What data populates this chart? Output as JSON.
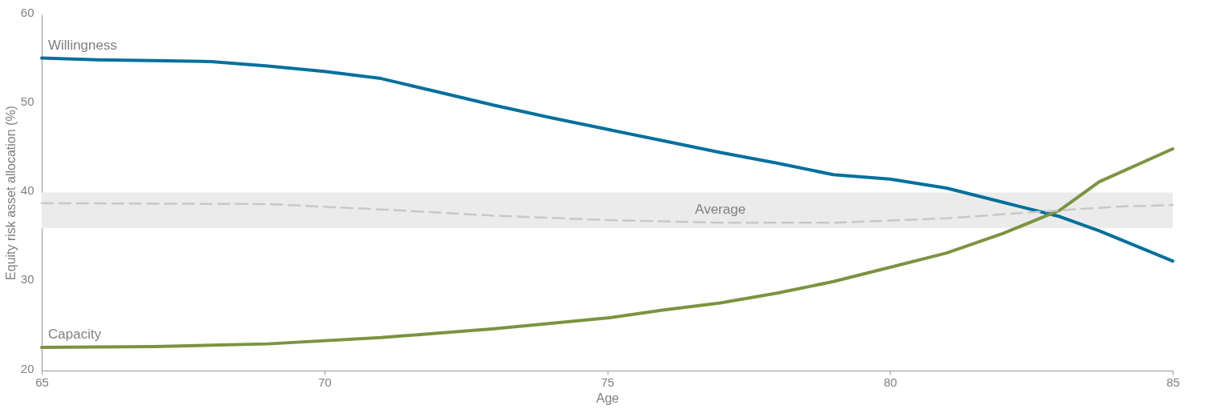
{
  "chart_data": {
    "type": "line",
    "xlabel": "Age",
    "ylabel": "Equity risk asset allocation (%)",
    "xlim": [
      65,
      85
    ],
    "xticks": [
      65,
      70,
      75,
      80,
      85
    ],
    "ylim": [
      20,
      60
    ],
    "yticks": [
      20,
      30,
      40,
      50,
      60
    ],
    "grid": false,
    "marker": "none",
    "bands": [
      {
        "axis": "y",
        "from": 36,
        "to": 40,
        "color": "#ebebeb"
      }
    ],
    "series": [
      {
        "name": "Willingness",
        "color": "#00709c",
        "line_style": "solid",
        "x": [
          65,
          66,
          67,
          68,
          69,
          70,
          71,
          72,
          73,
          74,
          75,
          76,
          77,
          78,
          79,
          80,
          81,
          82,
          83,
          83.7,
          85
        ],
        "values": [
          55.1,
          54.9,
          54.8,
          54.7,
          54.2,
          53.6,
          52.8,
          51.3,
          49.8,
          48.4,
          47.1,
          45.8,
          44.5,
          43.3,
          42.0,
          41.5,
          40.5,
          38.9,
          37.3,
          35.7,
          32.3
        ]
      },
      {
        "name": "Capacity",
        "color": "#7b9440",
        "line_style": "solid",
        "x": [
          65,
          67,
          69,
          71,
          73,
          75,
          76,
          77,
          78,
          79,
          80,
          81,
          82,
          83,
          83.7,
          85
        ],
        "values": [
          22.6,
          22.7,
          23.0,
          23.7,
          24.7,
          25.9,
          26.8,
          27.6,
          28.7,
          30.0,
          31.6,
          33.2,
          35.4,
          38.0,
          41.2,
          44.9
        ]
      },
      {
        "name": "Average",
        "color": "#c8c8c8",
        "line_style": "dashed",
        "x": [
          65,
          69,
          71,
          73,
          75,
          77,
          79,
          81,
          83,
          84,
          85
        ],
        "values": [
          38.8,
          38.7,
          38.1,
          37.4,
          36.9,
          36.6,
          36.6,
          37.1,
          38.0,
          38.4,
          38.6
        ]
      }
    ]
  }
}
